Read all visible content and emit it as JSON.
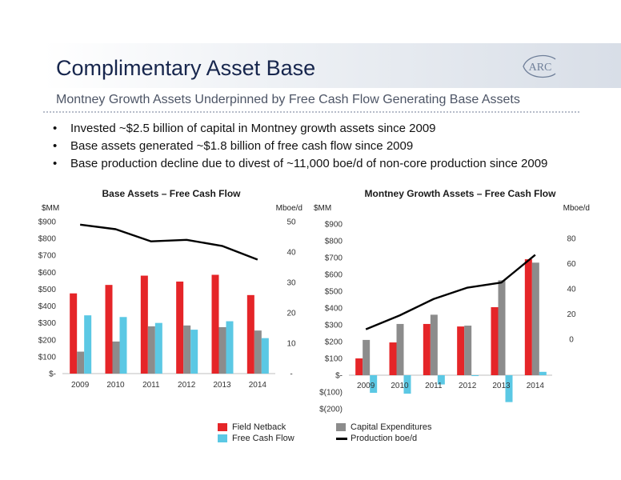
{
  "slide": {
    "title": "Complimentary Asset Base",
    "subtitle": "Montney Growth Assets Underpinned by Free Cash Flow Generating Base Assets",
    "logo_text": "ARC",
    "bullets": [
      "Invested ~$2.5 billion of capital in Montney growth assets since 2009",
      "Base assets generated ~$1.8 billion of free cash flow since 2009",
      "Base production decline due to divest of ~11,000 boe/d of non-core production since 2009"
    ]
  },
  "colors": {
    "field_netback": "#e52528",
    "capital_expenditures": "#8c8c8c",
    "free_cash_flow": "#5bc8e4",
    "production": "#000000"
  },
  "legend": {
    "field_netback": "Field Netback",
    "capital_expenditures": "Capital Expenditures",
    "free_cash_flow": "Free Cash Flow",
    "production": "Production boe/d"
  },
  "chart_data": [
    {
      "type": "bar",
      "title": "Base Assets – Free Cash Flow",
      "ylabel_left": "$MM",
      "ylabel_right": "Mboe/d",
      "categories": [
        "2009",
        "2010",
        "2011",
        "2012",
        "2013",
        "2014"
      ],
      "ylim_left": [
        0,
        900
      ],
      "ylim_right": [
        0,
        50
      ],
      "left_ticks": [
        {
          "value": 0,
          "label": "$-"
        },
        {
          "value": 100,
          "label": "$100"
        },
        {
          "value": 200,
          "label": "$200"
        },
        {
          "value": 300,
          "label": "$300"
        },
        {
          "value": 400,
          "label": "$400"
        },
        {
          "value": 500,
          "label": "$500"
        },
        {
          "value": 600,
          "label": "$600"
        },
        {
          "value": 700,
          "label": "$700"
        },
        {
          "value": 800,
          "label": "$800"
        },
        {
          "value": 900,
          "label": "$900"
        }
      ],
      "right_ticks": [
        {
          "value": 0,
          "label": "-"
        },
        {
          "value": 10,
          "label": "10"
        },
        {
          "value": 20,
          "label": "20"
        },
        {
          "value": 30,
          "label": "30"
        },
        {
          "value": 40,
          "label": "40"
        },
        {
          "value": 50,
          "label": "50"
        }
      ],
      "series": [
        {
          "name": "Field Netback",
          "key": "field_netback",
          "axis": "left",
          "kind": "bar",
          "values": [
            475,
            525,
            580,
            545,
            585,
            465
          ]
        },
        {
          "name": "Capital Expenditures",
          "key": "capital_expenditures",
          "axis": "left",
          "kind": "bar",
          "values": [
            130,
            190,
            280,
            285,
            275,
            255
          ]
        },
        {
          "name": "Free Cash Flow",
          "key": "free_cash_flow",
          "axis": "left",
          "kind": "bar",
          "values": [
            345,
            335,
            300,
            260,
            310,
            210
          ]
        },
        {
          "name": "Production boe/d",
          "key": "production",
          "axis": "right",
          "kind": "line",
          "values": [
            49,
            47.5,
            43.5,
            44,
            42,
            37.5
          ]
        }
      ],
      "legend_position": "bottom"
    },
    {
      "type": "bar",
      "title": "Montney Growth Assets – Free Cash Flow",
      "ylabel_left": "$MM",
      "ylabel_right": "Mboe/d",
      "categories": [
        "2009",
        "2010",
        "2011",
        "2012",
        "2013",
        "2014"
      ],
      "ylim_left": [
        -200,
        900
      ],
      "ylim_right": [
        -10,
        80
      ],
      "left_ticks": [
        {
          "value": -200,
          "label": "$(200)"
        },
        {
          "value": -100,
          "label": "$(100)"
        },
        {
          "value": 0,
          "label": "$-"
        },
        {
          "value": 100,
          "label": "$100"
        },
        {
          "value": 200,
          "label": "$200"
        },
        {
          "value": 300,
          "label": "$300"
        },
        {
          "value": 400,
          "label": "$400"
        },
        {
          "value": 500,
          "label": "$500"
        },
        {
          "value": 600,
          "label": "$600"
        },
        {
          "value": 700,
          "label": "$700"
        },
        {
          "value": 800,
          "label": "$800"
        },
        {
          "value": 900,
          "label": "$900"
        }
      ],
      "right_ticks": [
        {
          "value": 0,
          "label": "0"
        },
        {
          "value": 20,
          "label": "20"
        },
        {
          "value": 40,
          "label": "40"
        },
        {
          "value": 60,
          "label": "60"
        },
        {
          "value": 80,
          "label": "80"
        }
      ],
      "series": [
        {
          "name": "Field Netback",
          "key": "field_netback",
          "axis": "left",
          "kind": "bar",
          "values": [
            100,
            195,
            305,
            290,
            405,
            690
          ]
        },
        {
          "name": "Capital Expenditures",
          "key": "capital_expenditures",
          "axis": "left",
          "kind": "bar",
          "values": [
            210,
            305,
            360,
            295,
            565,
            670
          ]
        },
        {
          "name": "Free Cash Flow",
          "key": "free_cash_flow",
          "axis": "left",
          "kind": "bar",
          "values": [
            -105,
            -110,
            -55,
            -5,
            -160,
            20
          ]
        },
        {
          "name": "Production boe/d",
          "key": "production",
          "axis": "right",
          "kind": "line",
          "values": [
            8,
            19,
            32,
            41,
            45,
            67
          ]
        }
      ],
      "legend_position": "bottom"
    }
  ]
}
